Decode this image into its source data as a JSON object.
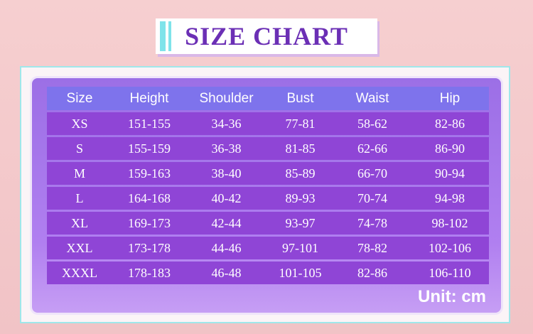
{
  "title": "SIZE CHART",
  "table": {
    "header": [
      "Size",
      "Height",
      "Shoulder",
      "Bust",
      "Waist",
      "Hip"
    ],
    "rows": [
      [
        "XS",
        "151-155",
        "34-36",
        "77-81",
        "58-62",
        "82-86"
      ],
      [
        "S",
        "155-159",
        "36-38",
        "81-85",
        "62-66",
        "86-90"
      ],
      [
        "M",
        "159-163",
        "38-40",
        "85-89",
        "66-70",
        "90-94"
      ],
      [
        "L",
        "164-168",
        "40-42",
        "89-93",
        "70-74",
        "94-98"
      ],
      [
        "XL",
        "169-173",
        "42-44",
        "93-97",
        "74-78",
        "98-102"
      ],
      [
        "XXL",
        "173-178",
        "44-46",
        "97-101",
        "78-82",
        "102-106"
      ],
      [
        "XXXL",
        "178-183",
        "46-48",
        "101-105",
        "82-86",
        "106-110"
      ]
    ]
  },
  "unit": "Unit: cm"
}
